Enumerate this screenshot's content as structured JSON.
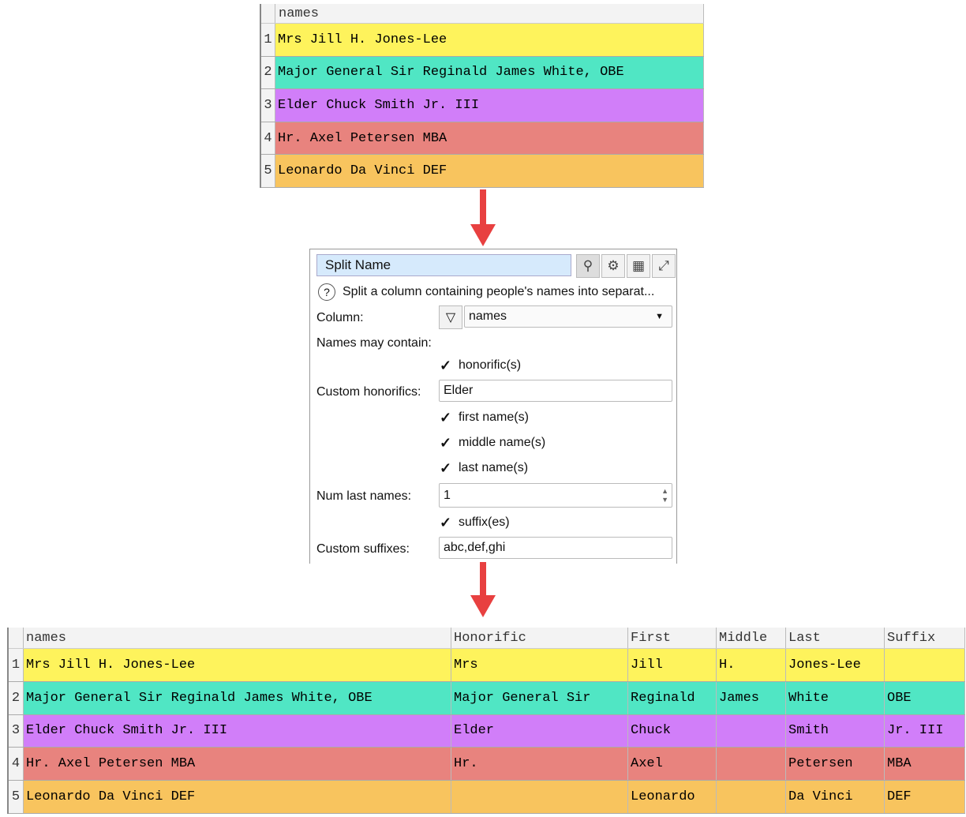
{
  "colors": [
    "#fef35c",
    "#50e6c4",
    "#d17ef9",
    "#e8837e",
    "#f8c45e"
  ],
  "input_table": {
    "header": "names",
    "rows": [
      {
        "n": "1",
        "names": "Mrs Jill H. Jones-Lee"
      },
      {
        "n": "2",
        "names": "Major General Sir Reginald James White, OBE"
      },
      {
        "n": "3",
        "names": "Elder Chuck Smith Jr. III"
      },
      {
        "n": "4",
        "names": "Hr. Axel Petersen MBA"
      },
      {
        "n": "5",
        "names": "Leonardo Da Vinci DEF"
      }
    ]
  },
  "panel": {
    "title": "Split Name",
    "description": "Split a column containing people's names into separat...",
    "column_label": "Column:",
    "column_value": "names",
    "names_may_contain": "Names may contain:",
    "honorifics": "honorific(s)",
    "custom_honorifics_label": "Custom honorifics:",
    "custom_honorifics": "Elder",
    "first": "first name(s)",
    "middle": "middle name(s)",
    "last": "last name(s)",
    "num_last_label": "Num last names:",
    "num_last": "1",
    "suffixes": "suffix(es)",
    "custom_suffixes_label": "Custom suffixes:",
    "custom_suffixes": "abc,def,ghi"
  },
  "output_table": {
    "headers": [
      "names",
      "Honorific",
      "First",
      "Middle",
      "Last",
      "Suffix"
    ],
    "rows": [
      [
        "1",
        "Mrs Jill H. Jones-Lee",
        "Mrs",
        "Jill",
        "H.",
        "Jones-Lee",
        ""
      ],
      [
        "2",
        "Major General Sir Reginald James White, OBE",
        "Major General Sir",
        "Reginald",
        "James",
        "White",
        "OBE"
      ],
      [
        "3",
        "Elder Chuck Smith Jr. III",
        "Elder",
        "Chuck",
        "",
        "Smith",
        "Jr. III"
      ],
      [
        "4",
        "Hr. Axel Petersen MBA",
        "Hr.",
        "Axel",
        "",
        "Petersen",
        "MBA"
      ],
      [
        "5",
        "Leonardo Da Vinci DEF",
        "",
        "Leonardo",
        "",
        "Da Vinci",
        "DEF"
      ]
    ]
  }
}
